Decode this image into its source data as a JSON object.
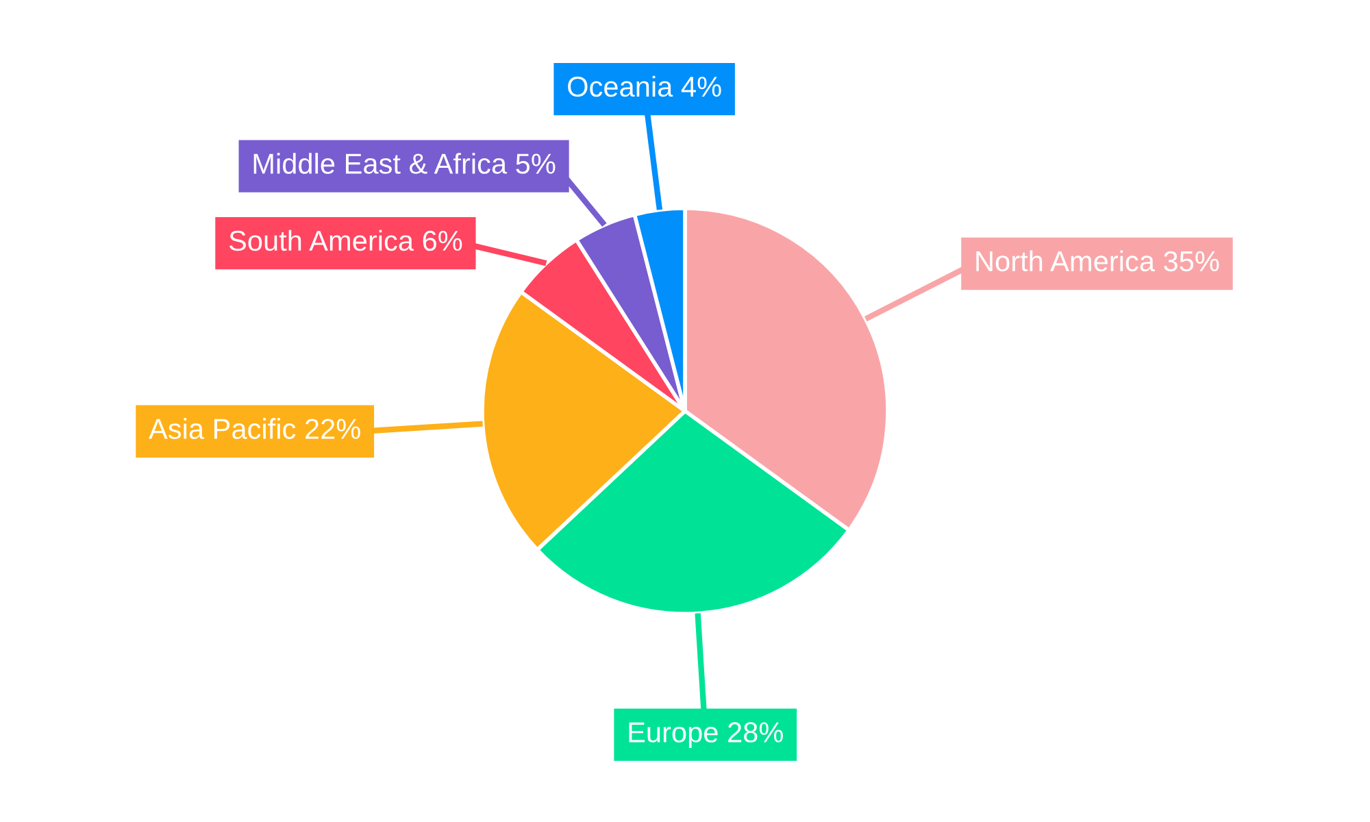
{
  "chart_data": {
    "type": "pie",
    "categories": [
      "North America",
      "Europe",
      "Asia Pacific",
      "South America",
      "Middle East & Africa",
      "Oceania"
    ],
    "values": [
      35,
      28,
      22,
      6,
      5,
      4
    ],
    "value_labels": [
      "35%",
      "28%",
      "22%",
      "6%",
      "5%",
      "4%"
    ],
    "colors": [
      "#f9a5a8",
      "#00e396",
      "#feb019",
      "#ff4560",
      "#775dd0",
      "#008ffb"
    ],
    "legend": false
  }
}
